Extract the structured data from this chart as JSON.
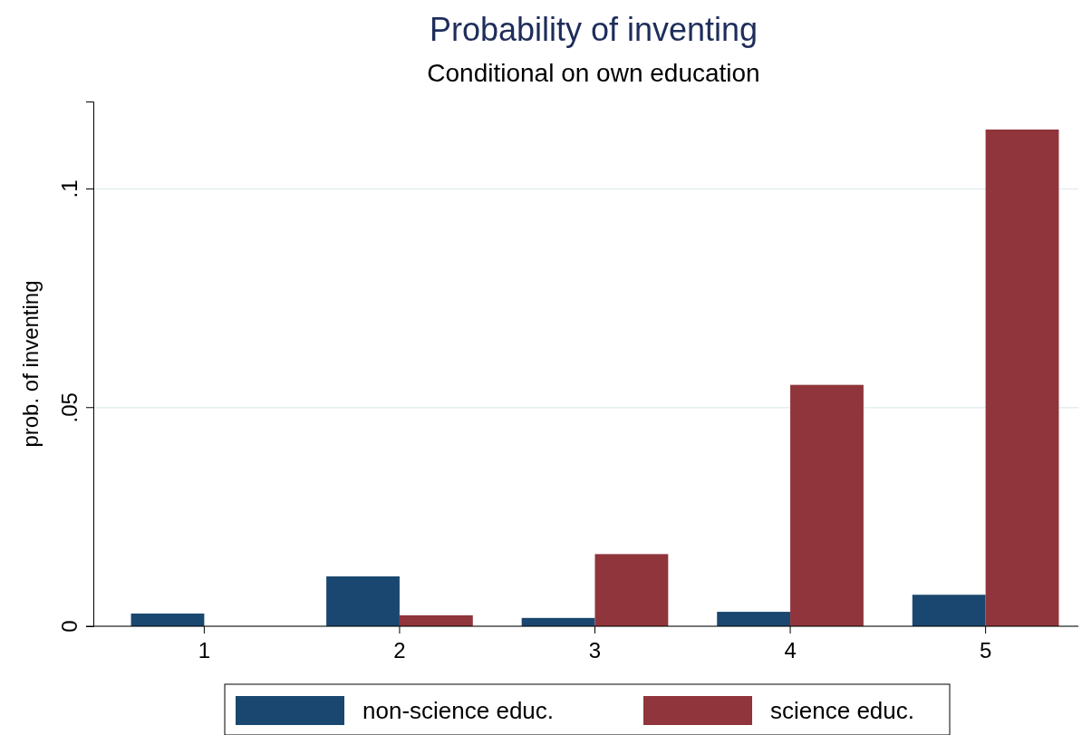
{
  "chart_data": {
    "type": "bar",
    "title": "Probability of inventing",
    "subtitle": "Conditional on own education",
    "ylabel": "prob. of inventing",
    "categories": [
      "1",
      "2",
      "3",
      "4",
      "5"
    ],
    "series": [
      {
        "name": "non-science educ.",
        "color": "#1a476f",
        "values": [
          0.0029,
          0.0114,
          0.0019,
          0.0033,
          0.0072
        ]
      },
      {
        "name": "science educ.",
        "color": "#90353b",
        "values": [
          0,
          0.0025,
          0.0165,
          0.0552,
          0.1136
        ]
      }
    ],
    "ylim": [
      0,
      0.12
    ],
    "yticks": [
      {
        "value": 0,
        "label": "0"
      },
      {
        "value": 0.05,
        "label": ".05"
      },
      {
        "value": 0.1,
        "label": ".1"
      }
    ],
    "grid": "y",
    "legend": "bottom"
  }
}
